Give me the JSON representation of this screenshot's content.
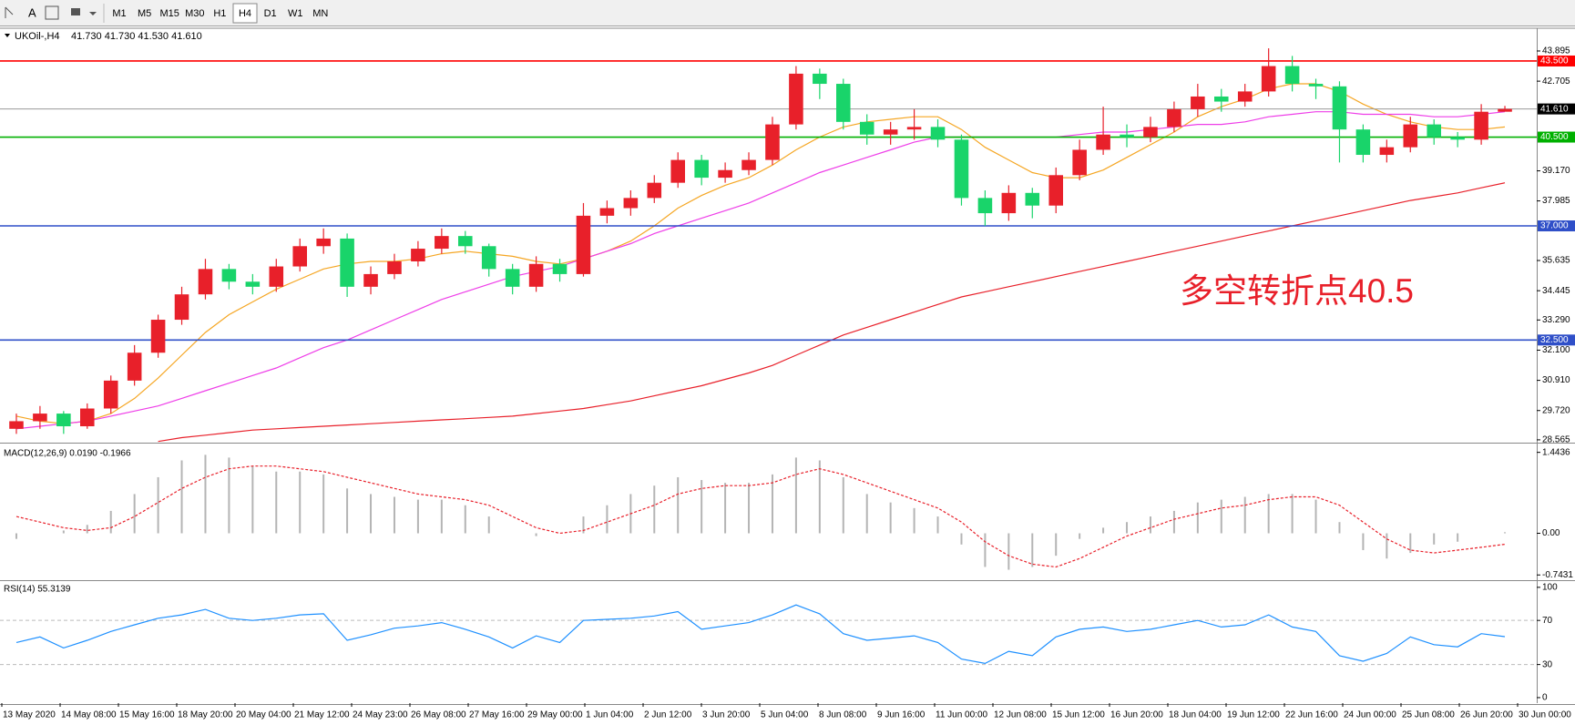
{
  "toolbar": {
    "timeframes": [
      "M1",
      "M5",
      "M15",
      "M30",
      "H1",
      "H4",
      "D1",
      "W1",
      "MN"
    ],
    "active": "H4",
    "text_tool": "A"
  },
  "time_axis": [
    "13 May 2020",
    "14 May 08:00",
    "15 May 16:00",
    "18 May 20:00",
    "20 May 04:00",
    "21 May 12:00",
    "24 May 23:00",
    "26 May 08:00",
    "27 May 16:00",
    "29 May 00:00",
    "1 Jun 04:00",
    "2 Jun 12:00",
    "3 Jun 20:00",
    "5 Jun 04:00",
    "8 Jun 08:00",
    "9 Jun 16:00",
    "11 Jun 00:00",
    "12 Jun 08:00",
    "15 Jun 12:00",
    "16 Jun 20:00",
    "18 Jun 04:00",
    "19 Jun 12:00",
    "22 Jun 16:00",
    "24 Jun 00:00",
    "25 Jun 08:00",
    "26 Jun 20:00",
    "30 Jun 00:00"
  ],
  "chart_data": [
    {
      "type": "candlestick",
      "title": "UKOil-,H4",
      "subtitle": "41.730 41.730 41.530 41.610",
      "up_color": "#e8202a",
      "down_color": "#19d46a",
      "ylim": [
        28.49,
        44.72
      ],
      "yticks": [
        {
          "value": 43.895,
          "label": "43.895"
        },
        {
          "value": 42.705,
          "label": "42.705"
        },
        {
          "value": 39.17,
          "label": "39.170"
        },
        {
          "value": 37.985,
          "label": "37.985"
        },
        {
          "value": 35.635,
          "label": "35.635"
        },
        {
          "value": 34.445,
          "label": "34.445"
        },
        {
          "value": 33.29,
          "label": "33.290"
        },
        {
          "value": 32.1,
          "label": "32.100"
        },
        {
          "value": 30.91,
          "label": "30.910"
        },
        {
          "value": 29.72,
          "label": "29.720"
        },
        {
          "value": 28.565,
          "label": "28.565"
        }
      ],
      "levels": [
        {
          "value": 43.5,
          "label": "43.500",
          "color": "#ff0000"
        },
        {
          "value": 41.61,
          "label": "41.610",
          "color": "#000000"
        },
        {
          "value": 40.5,
          "label": "40.500",
          "color": "#00b000"
        },
        {
          "value": 37,
          "label": "37.000",
          "color": "#2f4fc8"
        },
        {
          "value": 32.5,
          "label": "32.500",
          "color": "#2f4fc8"
        }
      ],
      "annotation": {
        "text": "多空转折点40.5",
        "color": "#e8202a"
      },
      "open": [
        29.0,
        29.3,
        29.6,
        29.1,
        29.8,
        30.9,
        32.0,
        33.3,
        34.3,
        35.3,
        34.8,
        34.6,
        35.4,
        36.2,
        36.5,
        34.6,
        35.1,
        35.6,
        36.1,
        36.6,
        36.2,
        35.3,
        34.6,
        35.5,
        35.1,
        37.4,
        37.7,
        38.1,
        38.7,
        39.6,
        38.9,
        39.2,
        39.6,
        41.0,
        43.0,
        42.6,
        41.1,
        40.6,
        40.8,
        40.9,
        40.4,
        38.1,
        37.5,
        38.3,
        37.8,
        39.0,
        40.0,
        40.6,
        40.5,
        40.9,
        41.6,
        42.1,
        41.9,
        42.3,
        43.3,
        42.6,
        42.5,
        40.8,
        39.8,
        40.1,
        41.0,
        40.5,
        40.4,
        41.5
      ],
      "high": [
        29.6,
        29.9,
        29.7,
        30.0,
        31.1,
        32.3,
        33.5,
        34.6,
        35.7,
        35.5,
        35.1,
        35.7,
        36.5,
        36.9,
        36.7,
        35.4,
        35.9,
        36.4,
        36.9,
        36.8,
        36.3,
        35.5,
        35.8,
        35.7,
        37.9,
        38.0,
        38.4,
        39.0,
        39.9,
        39.8,
        39.5,
        39.9,
        41.3,
        43.3,
        43.2,
        42.8,
        41.4,
        41.1,
        41.6,
        41.2,
        40.6,
        38.4,
        38.6,
        38.5,
        39.3,
        40.4,
        41.7,
        41.0,
        41.3,
        41.9,
        42.6,
        42.4,
        42.6,
        44.0,
        43.7,
        42.8,
        42.7,
        41.0,
        40.4,
        41.3,
        41.2,
        40.7,
        41.8,
        41.73
      ],
      "low": [
        28.8,
        29.0,
        28.8,
        29.0,
        29.6,
        30.7,
        31.8,
        33.1,
        34.1,
        34.5,
        34.3,
        34.4,
        35.2,
        35.9,
        34.2,
        34.3,
        34.9,
        35.4,
        35.9,
        35.9,
        35.0,
        34.3,
        34.4,
        34.8,
        35.0,
        37.1,
        37.4,
        37.9,
        38.5,
        38.6,
        38.7,
        39.0,
        39.4,
        40.8,
        42.0,
        40.8,
        40.2,
        40.2,
        40.4,
        40.1,
        37.8,
        37.0,
        37.2,
        37.3,
        37.5,
        38.8,
        39.8,
        40.1,
        40.3,
        40.7,
        41.3,
        41.5,
        41.7,
        42.1,
        42.3,
        42.0,
        39.5,
        39.5,
        39.5,
        39.9,
        40.2,
        40.1,
        40.2,
        41.53
      ],
      "close": [
        29.3,
        29.6,
        29.1,
        29.8,
        30.9,
        32.0,
        33.3,
        34.3,
        35.3,
        34.8,
        34.6,
        35.4,
        36.2,
        36.5,
        34.6,
        35.1,
        35.6,
        36.1,
        36.6,
        36.2,
        35.3,
        34.6,
        35.5,
        35.1,
        37.4,
        37.7,
        38.1,
        38.7,
        39.6,
        38.9,
        39.2,
        39.6,
        41.0,
        43.0,
        42.6,
        41.1,
        40.6,
        40.8,
        40.9,
        40.4,
        38.1,
        37.5,
        38.3,
        37.8,
        39.0,
        40.0,
        40.6,
        40.5,
        40.9,
        41.6,
        42.1,
        41.9,
        42.3,
        43.3,
        42.6,
        42.5,
        40.8,
        39.8,
        40.1,
        41.0,
        40.5,
        40.4,
        41.5,
        41.61
      ],
      "ma_lines": [
        {
          "color": "#f5a623",
          "values": [
            29.5,
            29.3,
            29.2,
            29.3,
            29.6,
            30.2,
            31.0,
            31.9,
            32.8,
            33.5,
            34.0,
            34.5,
            34.9,
            35.3,
            35.5,
            35.6,
            35.6,
            35.7,
            35.9,
            36.0,
            35.9,
            35.8,
            35.6,
            35.5,
            35.7,
            36.0,
            36.4,
            37.0,
            37.7,
            38.2,
            38.6,
            38.9,
            39.4,
            40.0,
            40.5,
            40.9,
            41.1,
            41.2,
            41.3,
            41.3,
            40.8,
            40.1,
            39.6,
            39.1,
            38.9,
            38.9,
            39.2,
            39.7,
            40.2,
            40.7,
            41.3,
            41.7,
            42.0,
            42.4,
            42.6,
            42.6,
            42.3,
            41.8,
            41.4,
            41.1,
            40.9,
            40.8,
            40.8,
            40.9
          ]
        },
        {
          "color": "#ee3ee8",
          "values": [
            29.0,
            29.1,
            29.2,
            29.3,
            29.5,
            29.7,
            29.9,
            30.2,
            30.5,
            30.8,
            31.1,
            31.4,
            31.8,
            32.2,
            32.5,
            32.9,
            33.3,
            33.7,
            34.1,
            34.4,
            34.7,
            35.0,
            35.2,
            35.4,
            35.7,
            36.0,
            36.3,
            36.7,
            37.0,
            37.3,
            37.6,
            37.9,
            38.3,
            38.7,
            39.1,
            39.4,
            39.7,
            40.0,
            40.3,
            40.5,
            40.5,
            40.5,
            40.5,
            40.5,
            40.5,
            40.6,
            40.7,
            40.7,
            40.8,
            40.9,
            41.0,
            41.0,
            41.1,
            41.3,
            41.4,
            41.5,
            41.5,
            41.4,
            41.4,
            41.4,
            41.3,
            41.3,
            41.4,
            41.5
          ]
        },
        {
          "color": "#e8202a",
          "values": [
            null,
            null,
            null,
            null,
            null,
            null,
            28.5,
            28.65,
            28.75,
            28.85,
            28.95,
            29.0,
            29.05,
            29.1,
            29.15,
            29.2,
            29.25,
            29.3,
            29.35,
            29.4,
            29.45,
            29.5,
            29.6,
            29.7,
            29.8,
            29.95,
            30.1,
            30.3,
            30.5,
            30.7,
            30.95,
            31.2,
            31.5,
            31.9,
            32.3,
            32.7,
            33.0,
            33.3,
            33.6,
            33.9,
            34.2,
            34.4,
            34.6,
            34.8,
            35.0,
            35.2,
            35.4,
            35.6,
            35.8,
            36.0,
            36.2,
            36.4,
            36.6,
            36.8,
            37.0,
            37.2,
            37.4,
            37.6,
            37.8,
            38.0,
            38.15,
            38.3,
            38.5,
            38.7
          ]
        }
      ]
    },
    {
      "type": "macd",
      "title": "MACD(12,26,9) 0.0190 -0.1966",
      "ylim": [
        -0.82,
        1.568
      ],
      "yticks": [
        1.4436,
        {
          "value": 0,
          "label": "0.00"
        },
        -0.7431
      ],
      "histogram": {
        "color": "#b4b4b4",
        "values": [
          -0.1,
          0.0,
          0.05,
          0.15,
          0.4,
          0.7,
          1.0,
          1.3,
          1.4,
          1.35,
          1.2,
          1.1,
          1.1,
          1.05,
          0.8,
          0.7,
          0.65,
          0.6,
          0.6,
          0.5,
          0.3,
          0.0,
          -0.05,
          0.0,
          0.3,
          0.5,
          0.7,
          0.85,
          1.0,
          0.95,
          0.9,
          0.9,
          1.05,
          1.35,
          1.3,
          1.0,
          0.7,
          0.55,
          0.45,
          0.3,
          -0.2,
          -0.6,
          -0.65,
          -0.6,
          -0.4,
          -0.1,
          0.1,
          0.2,
          0.3,
          0.4,
          0.55,
          0.6,
          0.65,
          0.7,
          0.7,
          0.6,
          0.2,
          -0.3,
          -0.45,
          -0.35,
          -0.2,
          -0.15,
          0.0,
          0.019
        ]
      },
      "signal": {
        "color": "#e8202a",
        "values": [
          0.3,
          0.2,
          0.1,
          0.05,
          0.1,
          0.3,
          0.55,
          0.8,
          1.0,
          1.15,
          1.2,
          1.2,
          1.15,
          1.1,
          1.0,
          0.9,
          0.8,
          0.7,
          0.65,
          0.6,
          0.5,
          0.3,
          0.1,
          0.0,
          0.05,
          0.2,
          0.35,
          0.5,
          0.7,
          0.8,
          0.85,
          0.85,
          0.9,
          1.05,
          1.15,
          1.05,
          0.9,
          0.75,
          0.6,
          0.45,
          0.2,
          -0.15,
          -0.4,
          -0.55,
          -0.6,
          -0.45,
          -0.25,
          -0.05,
          0.1,
          0.25,
          0.35,
          0.45,
          0.5,
          0.6,
          0.65,
          0.65,
          0.5,
          0.2,
          -0.1,
          -0.3,
          -0.35,
          -0.3,
          -0.25,
          -0.1966
        ]
      }
    },
    {
      "type": "rsi",
      "title": "RSI(14) 55.3139",
      "ylim": [
        -5,
        104
      ],
      "yticks": [
        100,
        70,
        30,
        0
      ],
      "levels": [
        70,
        30
      ],
      "color": "#1e90ff",
      "values": [
        50,
        55,
        45,
        52,
        60,
        66,
        72,
        75,
        80,
        72,
        70,
        72,
        75,
        76,
        52,
        57,
        63,
        65,
        68,
        62,
        55,
        45,
        56,
        50,
        70,
        71,
        72,
        74,
        78,
        62,
        65,
        68,
        75,
        84,
        76,
        58,
        52,
        54,
        56,
        50,
        35,
        31,
        42,
        38,
        55,
        62,
        64,
        60,
        62,
        66,
        70,
        64,
        66,
        75,
        64,
        60,
        38,
        33,
        40,
        55,
        48,
        46,
        58,
        55.3139
      ]
    }
  ]
}
